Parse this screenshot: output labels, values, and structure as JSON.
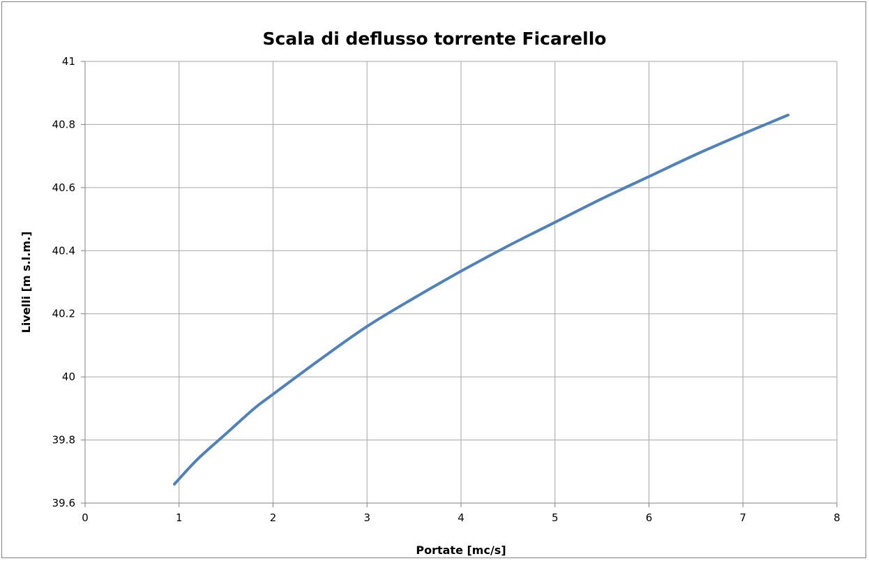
{
  "chart_data": {
    "type": "line",
    "title": "Scala di deflusso torrente Ficarello",
    "xlabel": "Portate [mc/s]",
    "ylabel": "Livelli [m s.l.m.]",
    "xlim": [
      0,
      8
    ],
    "ylim": [
      39.6,
      41
    ],
    "x_ticks": [
      0,
      1,
      2,
      3,
      4,
      5,
      6,
      7,
      8
    ],
    "y_ticks": [
      39.6,
      39.8,
      40,
      40.2,
      40.4,
      40.6,
      40.8,
      41
    ],
    "x_tick_labels": [
      "0",
      "1",
      "2",
      "3",
      "4",
      "5",
      "6",
      "7",
      "8"
    ],
    "y_tick_labels": [
      "39.6",
      "39.8",
      "40",
      "40.2",
      "40.4",
      "40.6",
      "40.8",
      "41"
    ],
    "grid": true,
    "legend": "none",
    "series": [
      {
        "color": "#4f81bd",
        "x": [
          0.95,
          1.2,
          1.5,
          1.8,
          2.0,
          2.5,
          3.0,
          3.5,
          4.0,
          4.5,
          5.0,
          5.5,
          6.0,
          6.5,
          7.0,
          7.48
        ],
        "y": [
          39.66,
          39.74,
          39.82,
          39.9,
          39.945,
          40.055,
          40.16,
          40.25,
          40.335,
          40.415,
          40.49,
          40.565,
          40.635,
          40.705,
          40.77,
          40.83
        ]
      }
    ]
  }
}
